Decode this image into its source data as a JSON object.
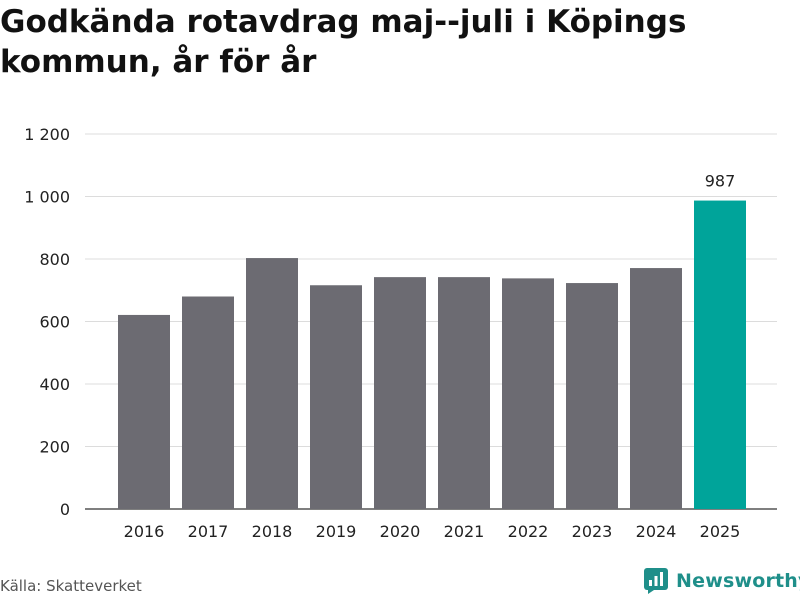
{
  "title": "Godkända rotavdrag maj--juli i Köpings kommun, år för år",
  "source": "Källa: Skatteverket",
  "brand": {
    "name": "Newsworthy",
    "icon": "newsworthy-logo-icon",
    "color": "#1f8f8a"
  },
  "chart_data": {
    "type": "bar",
    "categories": [
      "2016",
      "2017",
      "2018",
      "2019",
      "2020",
      "2021",
      "2022",
      "2023",
      "2024",
      "2025"
    ],
    "values": [
      621,
      680,
      803,
      716,
      742,
      742,
      738,
      723,
      771,
      987
    ],
    "data_labels": [
      null,
      null,
      null,
      null,
      null,
      null,
      null,
      null,
      null,
      "987"
    ],
    "ylim": [
      0,
      1200
    ],
    "yticks": [
      0,
      200,
      400,
      600,
      800,
      1000,
      1200
    ],
    "ytick_labels": [
      "0",
      "200",
      "400",
      "600",
      "800",
      "1 000",
      "1 200"
    ],
    "grid": true,
    "colors": {
      "default": "#6c6b72",
      "highlight": "#00a49a"
    },
    "highlight_index": 9
  }
}
